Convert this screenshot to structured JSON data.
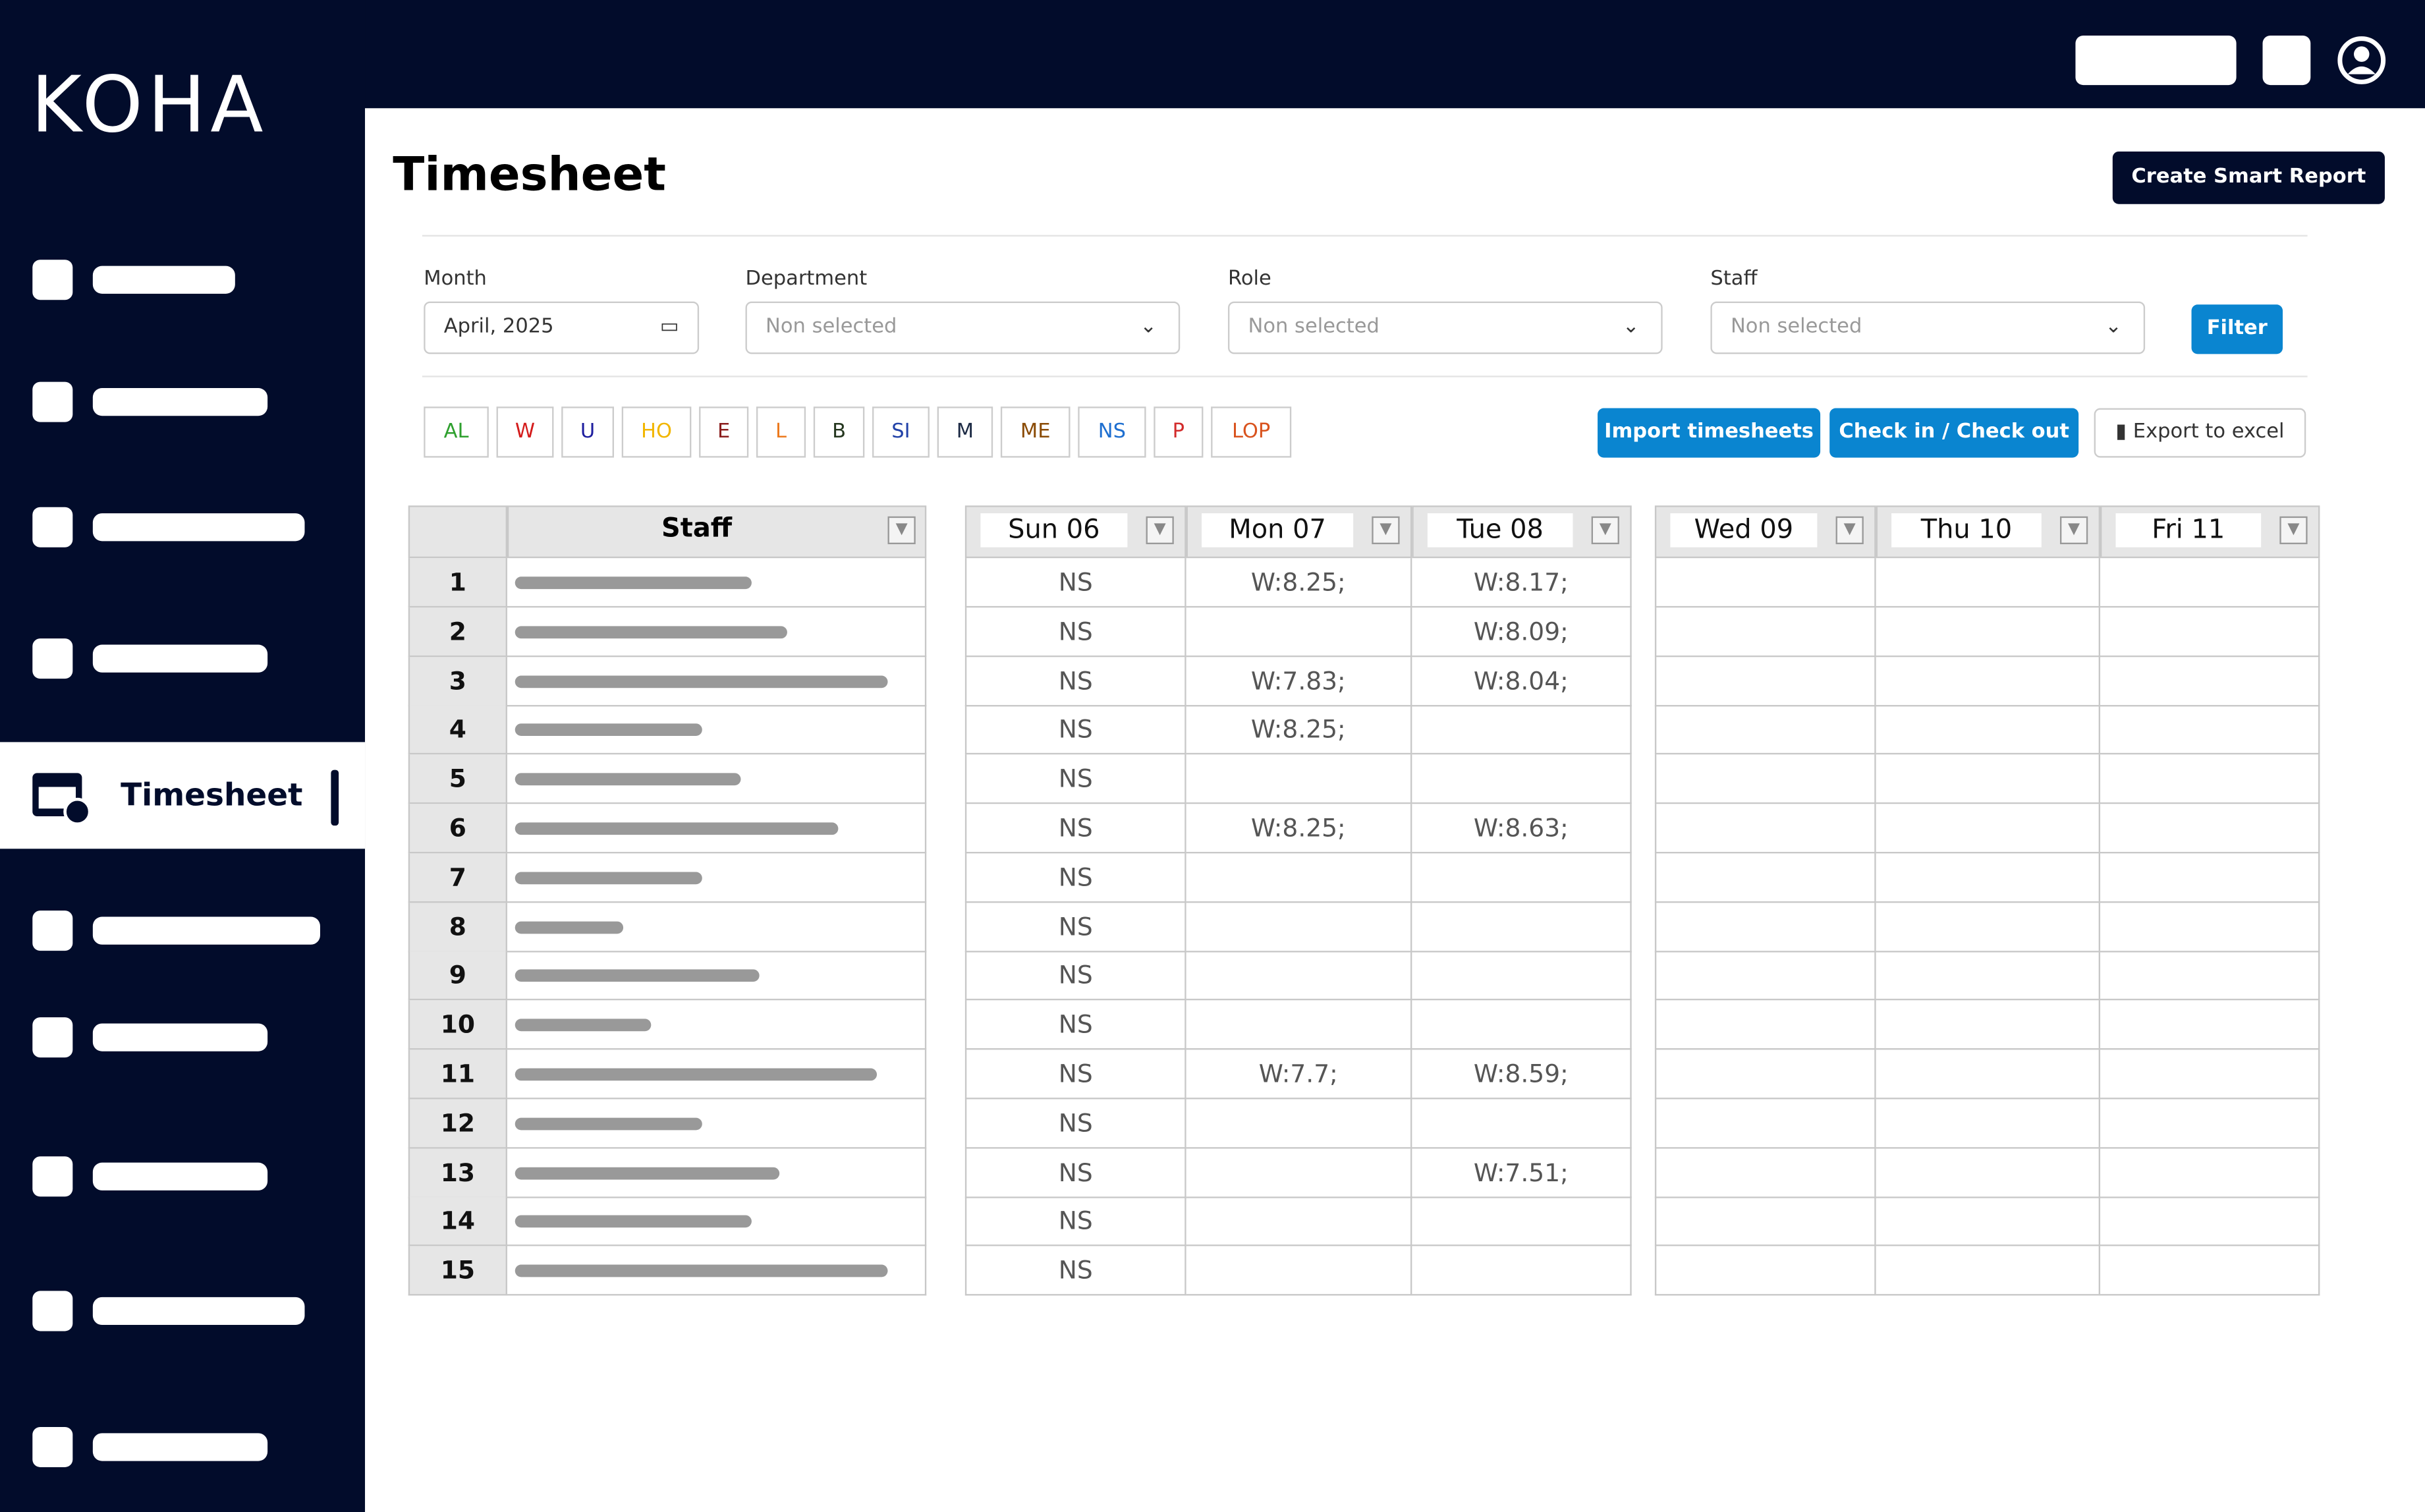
{
  "brand": "KOHA",
  "nav": {
    "active": "Timesheet"
  },
  "header": {
    "title": "Timesheet",
    "button": "Create Smart Report"
  },
  "filters": {
    "month": {
      "label": "Month",
      "value": "April, 2025"
    },
    "department": {
      "label": "Department",
      "value": "Non selected"
    },
    "role": {
      "label": "Role",
      "value": "Non selected"
    },
    "staff": {
      "label": "Staff",
      "value": "Non selected"
    },
    "button": "Filter"
  },
  "legend": [
    {
      "code": "AL",
      "color": "#2ea02e"
    },
    {
      "code": "W",
      "color": "#d41c1c"
    },
    {
      "code": "U",
      "color": "#1d1d9e"
    },
    {
      "code": "HO",
      "color": "#f2b600"
    },
    {
      "code": "E",
      "color": "#8b1e1e"
    },
    {
      "code": "L",
      "color": "#ec7a1e"
    },
    {
      "code": "B",
      "color": "#24361e"
    },
    {
      "code": "SI",
      "color": "#2242a8"
    },
    {
      "code": "M",
      "color": "#1c2a44"
    },
    {
      "code": "ME",
      "color": "#8a4b06"
    },
    {
      "code": "NS",
      "color": "#1e6fd0"
    },
    {
      "code": "P",
      "color": "#d22b2b"
    },
    {
      "code": "LOP",
      "color": "#d9531e"
    }
  ],
  "actions": {
    "import": "Import timesheets",
    "check": "Check in / Check out",
    "export": "Export to excel"
  },
  "table": {
    "staff_header": "Staff",
    "days": [
      "Sun 06",
      "Mon 07",
      "Tue 08",
      "Wed 09",
      "Thu 10",
      "Fri 11"
    ],
    "rows": [
      {
        "no": 1,
        "cells": [
          "NS",
          "W:8.25;",
          "W:8.17;",
          null,
          null,
          null
        ]
      },
      {
        "no": 2,
        "cells": [
          "NS",
          null,
          "W:8.09;",
          null,
          null,
          null
        ]
      },
      {
        "no": 3,
        "cells": [
          "NS",
          "W:7.83;",
          "W:8.04;",
          null,
          null,
          null
        ]
      },
      {
        "no": 4,
        "cells": [
          "NS",
          "W:8.25;",
          null,
          null,
          null,
          null
        ]
      },
      {
        "no": 5,
        "cells": [
          "NS",
          null,
          null,
          null,
          null,
          null
        ]
      },
      {
        "no": 6,
        "cells": [
          "NS",
          "W:8.25;",
          "W:8.63;",
          null,
          null,
          null
        ]
      },
      {
        "no": 7,
        "cells": [
          "NS",
          null,
          null,
          null,
          null,
          null
        ]
      },
      {
        "no": 8,
        "cells": [
          "NS",
          null,
          null,
          null,
          null,
          null
        ]
      },
      {
        "no": 9,
        "cells": [
          "NS",
          null,
          null,
          null,
          null,
          null
        ]
      },
      {
        "no": 10,
        "cells": [
          "NS",
          null,
          null,
          null,
          null,
          null
        ]
      },
      {
        "no": 11,
        "cells": [
          "NS",
          "W:7.7;",
          "W:8.59;",
          null,
          null,
          null
        ]
      },
      {
        "no": 12,
        "cells": [
          "NS",
          null,
          null,
          null,
          null,
          null
        ]
      },
      {
        "no": 13,
        "cells": [
          "NS",
          null,
          "W:7.51;",
          null,
          null,
          null
        ]
      },
      {
        "no": 14,
        "cells": [
          "NS",
          null,
          null,
          null,
          null,
          null
        ]
      },
      {
        "no": 15,
        "cells": [
          "NS",
          null,
          null,
          null,
          null,
          null
        ]
      }
    ]
  }
}
